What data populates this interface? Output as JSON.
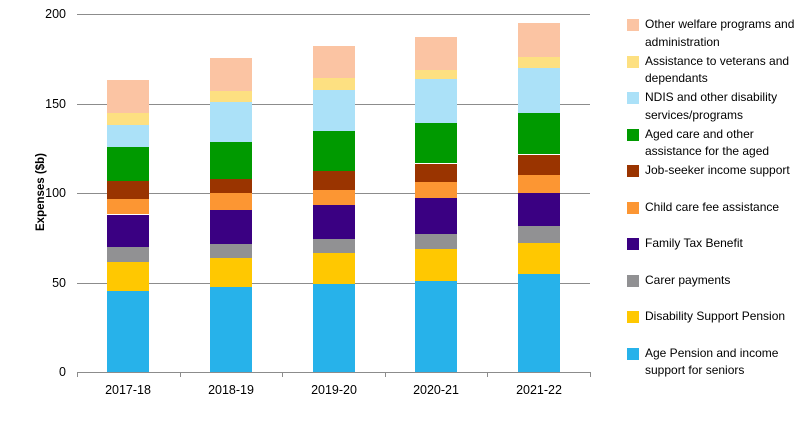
{
  "chart_data": {
    "type": "bar",
    "stacked": true,
    "title": "",
    "xlabel": "",
    "ylabel": "Expenses ($b)",
    "ylim": [
      0,
      200
    ],
    "yticks": [
      0,
      50,
      100,
      150,
      200
    ],
    "grid": true,
    "legend_position": "right",
    "categories": [
      "2017-18",
      "2018-19",
      "2019-20",
      "2020-21",
      "2021-22"
    ],
    "series": [
      {
        "name": "Age Pension and income support for seniors",
        "color": "#27B2EA",
        "values": [
          45,
          47.5,
          49,
          51,
          54.5
        ]
      },
      {
        "name": "Disability Support Pension",
        "color": "#FFC801",
        "values": [
          16.5,
          16,
          17.5,
          17.5,
          17.5
        ]
      },
      {
        "name": "Carer payments",
        "color": "#919193",
        "values": [
          8.5,
          8,
          8,
          8.5,
          9.5
        ]
      },
      {
        "name": "Family Tax Benefit",
        "color": "#3A0082",
        "values": [
          18,
          19,
          19,
          20,
          18.5
        ]
      },
      {
        "name": "Child care fee assistance",
        "color": "#FC9633",
        "values": [
          8.5,
          9.5,
          8,
          9,
          10
        ]
      },
      {
        "name": "Job-seeker income support",
        "color": "#9A3400",
        "values": [
          10.5,
          8,
          11,
          10.5,
          11.5
        ]
      },
      {
        "name": "Aged care and other assistance for the aged",
        "color": "#009A00",
        "values": [
          19,
          20.5,
          22,
          22.5,
          23
        ]
      },
      {
        "name": "NDIS and other disability services/programs",
        "color": "#ABE1F8",
        "values": [
          12,
          22.5,
          23,
          24.5,
          25.5
        ]
      },
      {
        "name": "Assistance to veterans and dependants",
        "color": "#FDE081",
        "values": [
          6.5,
          6,
          6.5,
          5,
          6
        ]
      },
      {
        "name": "Other welfare programs and administration",
        "color": "#FBC4A3",
        "values": [
          18.5,
          18.5,
          18,
          18.5,
          19
        ]
      }
    ],
    "legend_order_top_to_bottom": [
      "Other welfare programs and administration",
      "Assistance to veterans and dependants",
      "NDIS and other disability services/programs",
      "Aged care and other assistance for the aged",
      "Job-seeker income support",
      "Child care fee assistance",
      "Family Tax Benefit",
      "Carer payments",
      "Disability Support Pension",
      "Age Pension and income support for seniors"
    ],
    "colors": {
      "gridline": "#8c8c8c",
      "axis": "#8c8c8c",
      "text": "#000000",
      "background": "#ffffff"
    }
  }
}
